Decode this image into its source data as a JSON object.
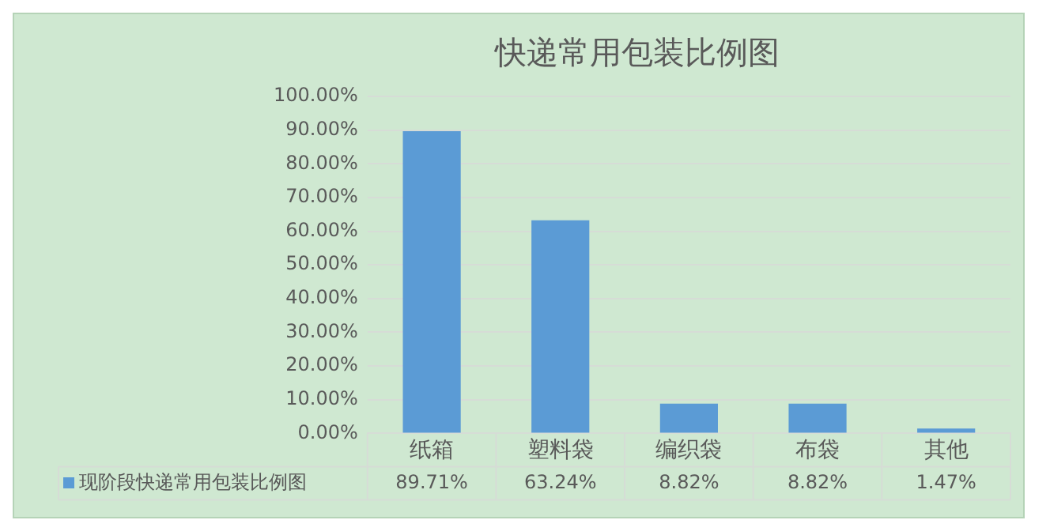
{
  "chart_data": {
    "type": "bar",
    "title": "快递常用包装比例图",
    "categories": [
      "纸箱",
      "塑料袋",
      "编织袋",
      "布袋",
      "其他"
    ],
    "series": [
      {
        "name": "现阶段快递常用包装比例图",
        "color": "#5b9bd5",
        "values": [
          89.71,
          63.24,
          8.82,
          8.82,
          1.47
        ],
        "value_labels": [
          "89.71%",
          "63.24%",
          "8.82%",
          "8.82%",
          "1.47%"
        ]
      }
    ],
    "ylim": [
      0,
      100
    ],
    "yticks": [
      {
        "value": 0,
        "label": "0.00%"
      },
      {
        "value": 10,
        "label": "10.00%"
      },
      {
        "value": 20,
        "label": "20.00%"
      },
      {
        "value": 30,
        "label": "30.00%"
      },
      {
        "value": 40,
        "label": "40.00%"
      },
      {
        "value": 50,
        "label": "50.00%"
      },
      {
        "value": 60,
        "label": "60.00%"
      },
      {
        "value": 70,
        "label": "70.00%"
      },
      {
        "value": 80,
        "label": "80.00%"
      },
      {
        "value": 90,
        "label": "90.00%"
      },
      {
        "value": 100,
        "label": "100.00%"
      }
    ],
    "grid": "y",
    "legend": "bottom left"
  }
}
